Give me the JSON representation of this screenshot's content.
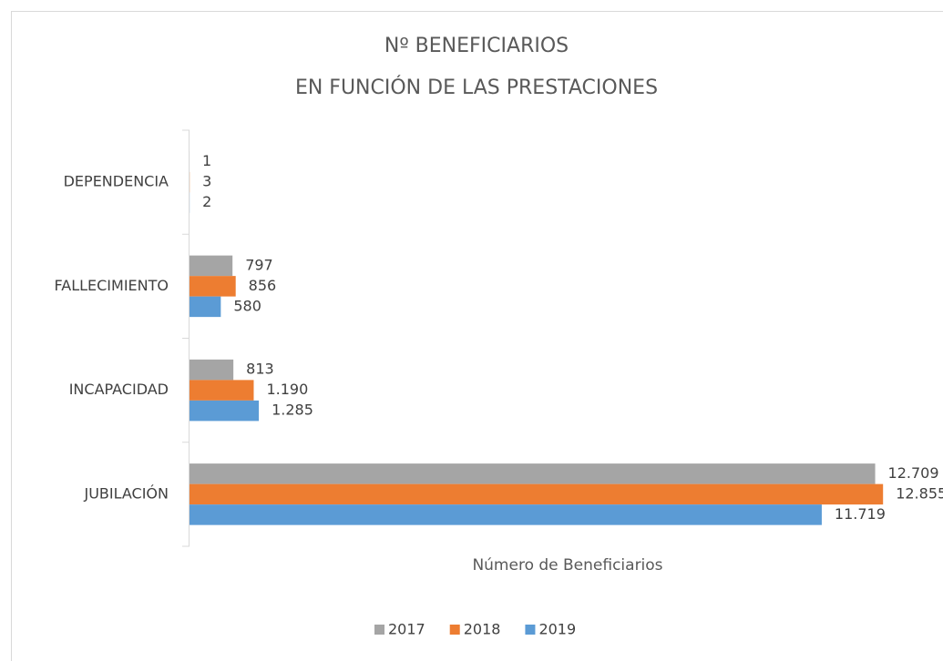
{
  "chart_data": {
    "type": "hbar",
    "title": "Nº BENEFICIARIOS",
    "subtitle": "EN FUNCIÓN DE LAS PRESTACIONES",
    "x_label": "Número de Beneficiarios",
    "categories": [
      "DEPENDENCIA",
      "FALLECIMIENTO",
      "INCAPACIDAD",
      "JUBILACIÓN"
    ],
    "series": [
      {
        "name": "2017",
        "color": "#a5a5a5",
        "values": [
          1,
          797,
          813,
          12709
        ],
        "value_labels": [
          "1",
          "797",
          "813",
          "12.709"
        ]
      },
      {
        "name": "2018",
        "color": "#ed7d31",
        "values": [
          3,
          856,
          1190,
          12855
        ],
        "value_labels": [
          "3",
          "856",
          "1.190",
          "12.855"
        ]
      },
      {
        "name": "2019",
        "color": "#5b9bd5",
        "values": [
          2,
          580,
          1285,
          11719
        ],
        "value_labels": [
          "2",
          "580",
          "1.285",
          "11.719"
        ]
      }
    ],
    "xlim": [
      0,
      14000
    ],
    "legend": "bottom"
  }
}
